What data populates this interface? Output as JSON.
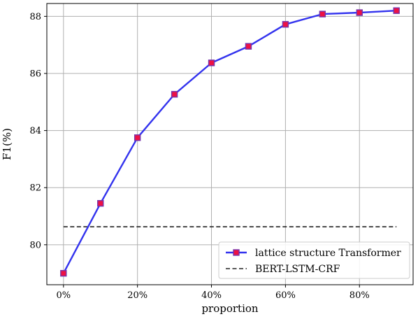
{
  "chart_data": {
    "type": "line",
    "title": "",
    "xlabel": "proportion",
    "ylabel": "F1(%)",
    "x": [
      0,
      10,
      20,
      30,
      40,
      50,
      60,
      70,
      80,
      90
    ],
    "xticks": [
      0,
      20,
      40,
      60,
      80
    ],
    "xtick_labels": [
      "0%",
      "20%",
      "40%",
      "60%",
      "80%"
    ],
    "yticks": [
      80,
      82,
      84,
      86,
      88
    ],
    "yticks_labels": [
      "80",
      "82",
      "84",
      "86",
      "88"
    ],
    "xlim": [
      -4.5,
      94.5
    ],
    "ylim": [
      78.6,
      88.45
    ],
    "grid": true,
    "legend_position": "lower-right",
    "series": [
      {
        "name": "lattice structure Transformer",
        "style": "solid-line-square-markers",
        "line_color": "#3333ee",
        "marker_face_color": "#ee1144",
        "marker_edge_color": "#7733aa",
        "values": [
          79.0,
          81.45,
          83.75,
          85.27,
          86.37,
          86.95,
          87.72,
          88.08,
          88.13,
          88.2
        ]
      },
      {
        "name": "BERT-LSTM-CRF",
        "style": "dashed-line",
        "line_color": "#222222",
        "values": [
          80.63,
          80.63,
          80.63,
          80.63,
          80.63,
          80.63,
          80.63,
          80.63,
          80.63,
          80.63
        ]
      }
    ]
  }
}
